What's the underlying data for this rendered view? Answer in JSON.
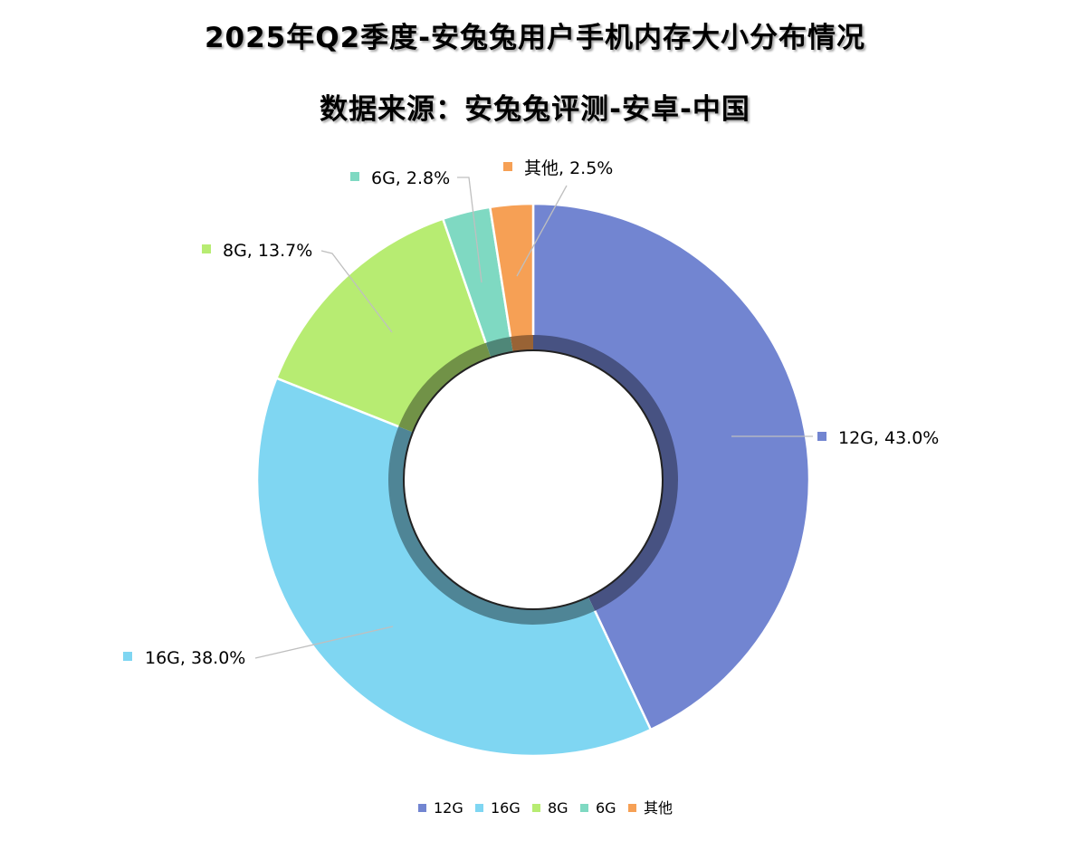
{
  "chart_data": {
    "type": "pie",
    "subtype": "doughnut",
    "title": "2025年Q2季度-安兔兔用户手机内存大小分布情况",
    "subtitle": "数据来源：安兔兔评测-安卓-中国",
    "categories": [
      "12G",
      "16G",
      "8G",
      "6G",
      "其他"
    ],
    "values": [
      43.0,
      38.0,
      13.7,
      2.8,
      2.5
    ],
    "data_labels": [
      "12G, 43.0%",
      "16G, 38.0%",
      "8G, 13.7%",
      "6G, 2.8%",
      "其他, 2.5%"
    ],
    "colors": [
      "#7285d1",
      "#7fd6f2",
      "#b7ec72",
      "#7fd9c2",
      "#f6a055"
    ],
    "legend_position": "bottom"
  }
}
